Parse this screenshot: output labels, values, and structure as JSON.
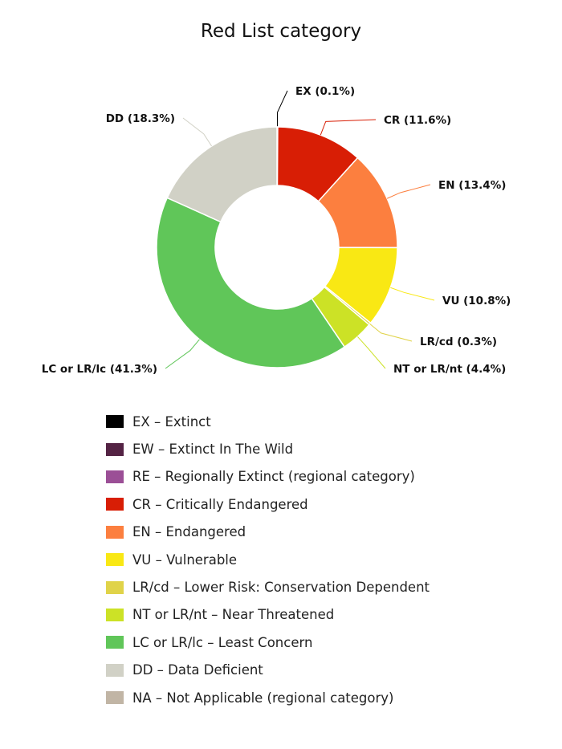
{
  "chart_data": {
    "type": "pie",
    "title": "Red List category",
    "slices": [
      {
        "label": "EX (0.1%)",
        "value": 0.1,
        "color": "#000000"
      },
      {
        "label": "CR (11.6%)",
        "value": 11.6,
        "color": "#d81e05"
      },
      {
        "label": "EN (13.4%)",
        "value": 13.4,
        "color": "#fc7f3f"
      },
      {
        "label": "VU (10.8%)",
        "value": 10.8,
        "color": "#f9e814"
      },
      {
        "label": "LR/cd (0.3%)",
        "value": 0.3,
        "color": "#e0d349"
      },
      {
        "label": "NT or LR/nt (4.4%)",
        "value": 4.4,
        "color": "#cce226"
      },
      {
        "label": "LC or LR/lc (41.3%)",
        "value": 41.3,
        "color": "#60c659"
      },
      {
        "label": "DD (18.3%)",
        "value": 18.3,
        "color": "#d1d1c6"
      }
    ],
    "legend": [
      {
        "text": "EX – Extinct",
        "color": "#000000"
      },
      {
        "text": "EW – Extinct In The Wild",
        "color": "#542344"
      },
      {
        "text": "RE – Regionally Extinct (regional category)",
        "color": "#9b4f96"
      },
      {
        "text": "CR – Critically Endangered",
        "color": "#d81e05"
      },
      {
        "text": "EN – Endangered",
        "color": "#fc7f3f"
      },
      {
        "text": "VU – Vulnerable",
        "color": "#f9e814"
      },
      {
        "text": "LR/cd – Lower Risk: Conservation Dependent",
        "color": "#e0d349"
      },
      {
        "text": "NT or LR/nt – Near Threatened",
        "color": "#cce226"
      },
      {
        "text": "LC or LR/lc – Least Concern",
        "color": "#60c659"
      },
      {
        "text": "DD – Data Deficient",
        "color": "#d1d1c6"
      },
      {
        "text": "NA – Not Applicable (regional category)",
        "color": "#c1b5a5"
      }
    ],
    "legend_position": "bottom"
  }
}
